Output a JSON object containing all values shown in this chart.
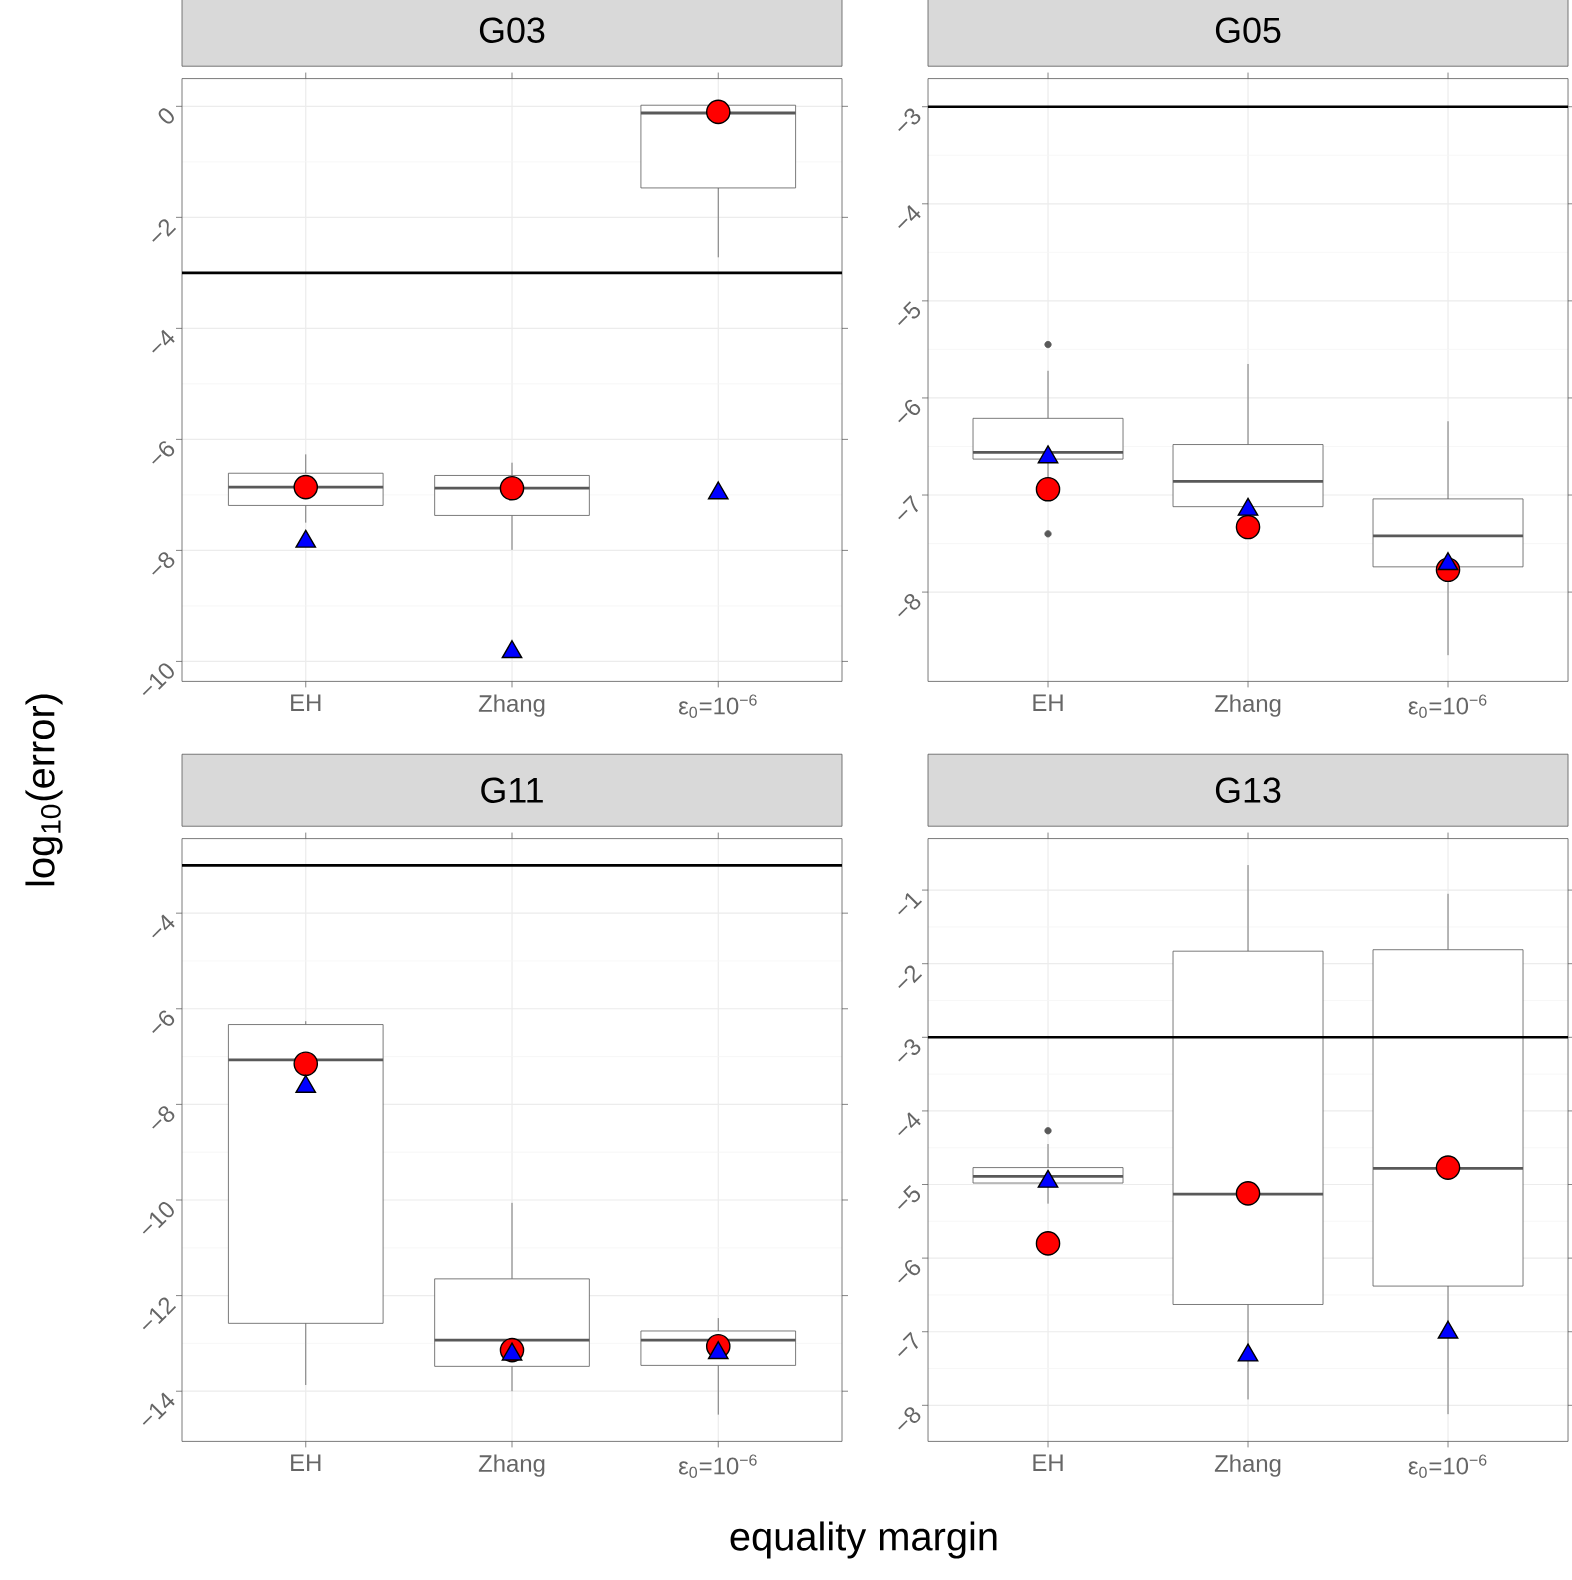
{
  "chart_data": [
    {
      "type": "box",
      "title": "G03",
      "ylabel": "log$_{10}$(error)",
      "categories": [
        "EH",
        "Zhang",
        "ε$_{0}$=10$^{−6}$"
      ],
      "ylim": [
        -10.36,
        0.5
      ],
      "yticks": [
        0,
        {
          "value": -2,
          "label": "−2"
        },
        {
          "value": -4,
          "label": "−4"
        },
        {
          "value": -6,
          "label": "−6"
        },
        {
          "value": -8,
          "label": "−8"
        },
        {
          "value": -10,
          "label": "−10"
        }
      ],
      "grid": true,
      "boxes": [
        {
          "low": -7.5,
          "q1": -7.19,
          "median": -6.86,
          "q3": -6.61,
          "high": -6.27
        },
        {
          "low": -7.99,
          "q1": -7.37,
          "median": -6.88,
          "q3": -6.65,
          "high": -6.42
        },
        {
          "low": -2.72,
          "q1": -1.47,
          "median": -0.12,
          "q3": 0.02,
          "high": 0.02
        }
      ],
      "series": [
        {
          "type": "scatter",
          "marker": "circle",
          "color": "#ff0000",
          "x": [
            "EH",
            "Zhang",
            "ε$_{0}$=10$^{−6}$"
          ],
          "values": [
            -6.86,
            -6.88,
            -0.1
          ]
        },
        {
          "type": "scatter",
          "marker": "triangle",
          "color": "#0000ff",
          "x": [
            "EH",
            "Zhang",
            "ε$_{0}$=10$^{−6}$"
          ],
          "values": [
            -7.84,
            -9.83,
            -6.97
          ]
        }
      ],
      "ref_lines": [
        {
          "axis": "y",
          "value": -3,
          "color": "#000000"
        }
      ]
    },
    {
      "type": "box",
      "title": "G05",
      "categories": [
        "EH",
        "Zhang",
        "ε$_{0}$=10$^{−6}$"
      ],
      "ylim": [
        -8.92,
        -2.71
      ],
      "yticks": [
        {
          "value": -3,
          "label": "−3"
        },
        {
          "value": -4,
          "label": "−4"
        },
        {
          "value": -5,
          "label": "−5"
        },
        {
          "value": -6,
          "label": "−6"
        },
        {
          "value": -7,
          "label": "−7"
        },
        {
          "value": -8,
          "label": "−8"
        }
      ],
      "grid": true,
      "boxes": [
        {
          "low": -6.9,
          "q1": -6.63,
          "median": -6.56,
          "q3": -6.21,
          "high": -5.72,
          "outliers": [
            -5.45,
            -7.4
          ]
        },
        {
          "low": -7.4,
          "q1": -7.12,
          "median": -6.86,
          "q3": -6.48,
          "high": -5.65
        },
        {
          "low": -8.65,
          "q1": -7.74,
          "median": -7.42,
          "q3": -7.04,
          "high": -6.24
        }
      ],
      "series": [
        {
          "type": "scatter",
          "marker": "circle",
          "color": "#ff0000",
          "x": [
            "EH",
            "Zhang",
            "ε$_{0}$=10$^{−6}$"
          ],
          "values": [
            -6.94,
            -7.33,
            -7.77
          ]
        },
        {
          "type": "scatter",
          "marker": "triangle",
          "color": "#0000ff",
          "x": [
            "EH",
            "Zhang",
            "ε$_{0}$=10$^{−6}$"
          ],
          "values": [
            -6.61,
            -7.15,
            -7.71
          ]
        }
      ],
      "ref_lines": [
        {
          "axis": "y",
          "value": -3,
          "color": "#000000"
        }
      ]
    },
    {
      "type": "box",
      "title": "G11",
      "categories": [
        "EH",
        "Zhang",
        "ε$_{0}$=10$^{−6}$"
      ],
      "ylim": [
        -15.05,
        -2.44
      ],
      "yticks": [
        {
          "value": -4,
          "label": "−4"
        },
        {
          "value": -6,
          "label": "−6"
        },
        {
          "value": -8,
          "label": "−8"
        },
        {
          "value": -10,
          "label": "−10"
        },
        {
          "value": -12,
          "label": "−12"
        },
        {
          "value": -14,
          "label": "−14"
        }
      ],
      "grid": true,
      "boxes": [
        {
          "low": -13.87,
          "q1": -12.58,
          "median": -7.07,
          "q3": -6.33,
          "high": -6.26
        },
        {
          "low": -14.0,
          "q1": -13.48,
          "median": -12.93,
          "q3": -11.65,
          "high": -10.06
        },
        {
          "low": -14.49,
          "q1": -13.46,
          "median": -12.93,
          "q3": -12.74,
          "high": -12.47
        }
      ],
      "series": [
        {
          "type": "scatter",
          "marker": "circle",
          "color": "#ff0000",
          "x": [
            "EH",
            "Zhang",
            "ε$_{0}$=10$^{−6}$"
          ],
          "values": [
            -7.15,
            -13.14,
            -13.06
          ]
        },
        {
          "type": "scatter",
          "marker": "triangle",
          "color": "#0000ff",
          "x": [
            "EH",
            "Zhang",
            "ε$_{0}$=10$^{−6}$"
          ],
          "values": [
            -7.63,
            -13.23,
            -13.2
          ]
        }
      ],
      "ref_lines": [
        {
          "axis": "y",
          "value": -3,
          "color": "#000000"
        }
      ]
    },
    {
      "type": "box",
      "title": "G13",
      "xlabel": "equality margin",
      "categories": [
        "EH",
        "Zhang",
        "ε$_{0}$=10$^{−6}$"
      ],
      "ylim": [
        -8.49,
        -0.3
      ],
      "yticks": [
        {
          "value": -1,
          "label": "−1"
        },
        {
          "value": -2,
          "label": "−2"
        },
        {
          "value": -3,
          "label": "−3"
        },
        {
          "value": -4,
          "label": "−4"
        },
        {
          "value": -5,
          "label": "−5"
        },
        {
          "value": -6,
          "label": "−6"
        },
        {
          "value": -7,
          "label": "−7"
        },
        {
          "value": -8,
          "label": "−8"
        }
      ],
      "grid": true,
      "boxes": [
        {
          "low": -5.26,
          "q1": -4.98,
          "median": -4.89,
          "q3": -4.77,
          "high": -4.45,
          "outliers": [
            -4.27
          ]
        },
        {
          "low": -7.92,
          "q1": -6.63,
          "median": -5.13,
          "q3": -1.83,
          "high": -0.66
        },
        {
          "low": -8.12,
          "q1": -6.38,
          "median": -4.78,
          "q3": -1.81,
          "high": -1.05
        }
      ],
      "series": [
        {
          "type": "scatter",
          "marker": "circle",
          "color": "#ff0000",
          "x": [
            "EH",
            "Zhang",
            "ε$_{0}$=10$^{−6}$"
          ],
          "values": [
            -5.8,
            -5.12,
            -4.77
          ]
        },
        {
          "type": "scatter",
          "marker": "triangle",
          "color": "#0000ff",
          "x": [
            "EH",
            "Zhang",
            "ε$_{0}$=10$^{−6}$"
          ],
          "values": [
            -4.96,
            -7.32,
            -7.01
          ]
        }
      ],
      "ref_lines": [
        {
          "axis": "y",
          "value": -3,
          "color": "#000000"
        }
      ]
    }
  ]
}
